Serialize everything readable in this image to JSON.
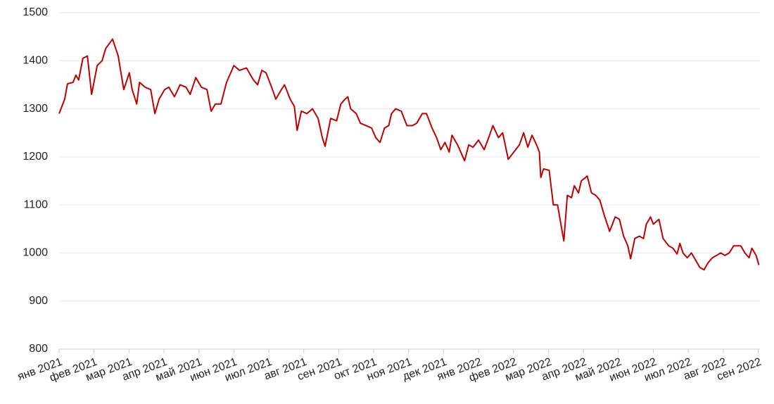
{
  "chart_data": {
    "type": "line",
    "color": "#c00000",
    "grid": true,
    "x": [
      0,
      0.16,
      0.24,
      0.4,
      0.48,
      0.56,
      0.68,
      0.81,
      0.93,
      1.09,
      1.23,
      1.33,
      1.53,
      1.69,
      1.85,
      2.01,
      2.09,
      2.22,
      2.3,
      2.46,
      2.62,
      2.74,
      2.86,
      3.02,
      3.14,
      3.3,
      3.46,
      3.63,
      3.75,
      3.91,
      4.07,
      4.23,
      4.35,
      4.47,
      4.63,
      4.79,
      5.0,
      5.16,
      5.36,
      5.56,
      5.68,
      5.8,
      5.92,
      6.08,
      6.2,
      6.36,
      6.45,
      6.61,
      6.73,
      6.81,
      6.93,
      7.09,
      7.25,
      7.41,
      7.53,
      7.61,
      7.77,
      7.94,
      8.06,
      8.18,
      8.26,
      8.34,
      8.5,
      8.62,
      8.78,
      8.94,
      9.06,
      9.18,
      9.31,
      9.43,
      9.51,
      9.63,
      9.79,
      9.95,
      10.11,
      10.23,
      10.39,
      10.51,
      10.67,
      10.8,
      10.92,
      11.04,
      11.16,
      11.24,
      11.4,
      11.6,
      11.72,
      11.84,
      12.0,
      12.16,
      12.29,
      12.41,
      12.57,
      12.69,
      12.85,
      13.01,
      13.17,
      13.29,
      13.41,
      13.53,
      13.66,
      13.74,
      13.78,
      13.86,
      14.02,
      14.14,
      14.26,
      14.38,
      14.44,
      14.54,
      14.66,
      14.74,
      14.86,
      14.94,
      15.11,
      15.23,
      15.35,
      15.47,
      15.59,
      15.75,
      15.91,
      16.03,
      16.15,
      16.27,
      16.35,
      16.47,
      16.6,
      16.72,
      16.8,
      16.92,
      17.0,
      17.16,
      17.28,
      17.44,
      17.56,
      17.68,
      17.76,
      17.85,
      17.97,
      18.09,
      18.21,
      18.33,
      18.45,
      18.57,
      18.69,
      18.81,
      18.93,
      19.05,
      19.17,
      19.3,
      19.5,
      19.62,
      19.74,
      19.82,
      19.94,
      20.02
    ],
    "values": [
      1290,
      1320,
      1352,
      1355,
      1370,
      1360,
      1405,
      1410,
      1330,
      1390,
      1400,
      1425,
      1445,
      1410,
      1340,
      1375,
      1340,
      1310,
      1355,
      1345,
      1340,
      1290,
      1320,
      1340,
      1345,
      1325,
      1350,
      1345,
      1330,
      1365,
      1345,
      1340,
      1295,
      1310,
      1310,
      1355,
      1390,
      1380,
      1385,
      1360,
      1350,
      1380,
      1375,
      1345,
      1320,
      1340,
      1350,
      1320,
      1305,
      1255,
      1295,
      1290,
      1300,
      1280,
      1240,
      1222,
      1280,
      1275,
      1310,
      1320,
      1325,
      1300,
      1290,
      1270,
      1265,
      1260,
      1240,
      1230,
      1260,
      1265,
      1290,
      1300,
      1295,
      1265,
      1265,
      1270,
      1290,
      1290,
      1260,
      1240,
      1215,
      1230,
      1210,
      1245,
      1225,
      1192,
      1225,
      1220,
      1235,
      1215,
      1240,
      1265,
      1240,
      1250,
      1195,
      1210,
      1225,
      1250,
      1220,
      1245,
      1225,
      1210,
      1157,
      1175,
      1172,
      1100,
      1100,
      1050,
      1025,
      1120,
      1115,
      1140,
      1125,
      1150,
      1160,
      1125,
      1120,
      1110,
      1080,
      1045,
      1075,
      1070,
      1035,
      1015,
      988,
      1030,
      1035,
      1030,
      1060,
      1075,
      1060,
      1070,
      1030,
      1015,
      1010,
      998,
      1020,
      1000,
      990,
      1000,
      985,
      970,
      965,
      980,
      990,
      995,
      1000,
      995,
      1000,
      1015,
      1015,
      1000,
      990,
      1010,
      995,
      975
    ],
    "xlim": [
      0,
      20.05
    ],
    "xticks": [
      {
        "value": 0,
        "label": "янв 2021"
      },
      {
        "value": 1,
        "label": "фев 2021"
      },
      {
        "value": 2,
        "label": "мар 2021"
      },
      {
        "value": 3,
        "label": "апр 2021"
      },
      {
        "value": 4,
        "label": "май 2021"
      },
      {
        "value": 5,
        "label": "июн 2021"
      },
      {
        "value": 6,
        "label": "июл 2021"
      },
      {
        "value": 7,
        "label": "авг 2021"
      },
      {
        "value": 8,
        "label": "сен 2021"
      },
      {
        "value": 9,
        "label": "окт 2021"
      },
      {
        "value": 10,
        "label": "ноя 2021"
      },
      {
        "value": 11,
        "label": "дек 2021"
      },
      {
        "value": 12,
        "label": "янв 2022"
      },
      {
        "value": 13,
        "label": "фев 2022"
      },
      {
        "value": 14,
        "label": "мар 2022"
      },
      {
        "value": 15,
        "label": "апр 2022"
      },
      {
        "value": 16,
        "label": "май 2022"
      },
      {
        "value": 17,
        "label": "июн 2022"
      },
      {
        "value": 18,
        "label": "июл 2022"
      },
      {
        "value": 19,
        "label": "авг 2022"
      },
      {
        "value": 20,
        "label": "сен 2022"
      }
    ],
    "ylim": [
      800,
      1500
    ],
    "yticks": [
      800,
      900,
      1000,
      1100,
      1200,
      1300,
      1400,
      1500
    ]
  }
}
